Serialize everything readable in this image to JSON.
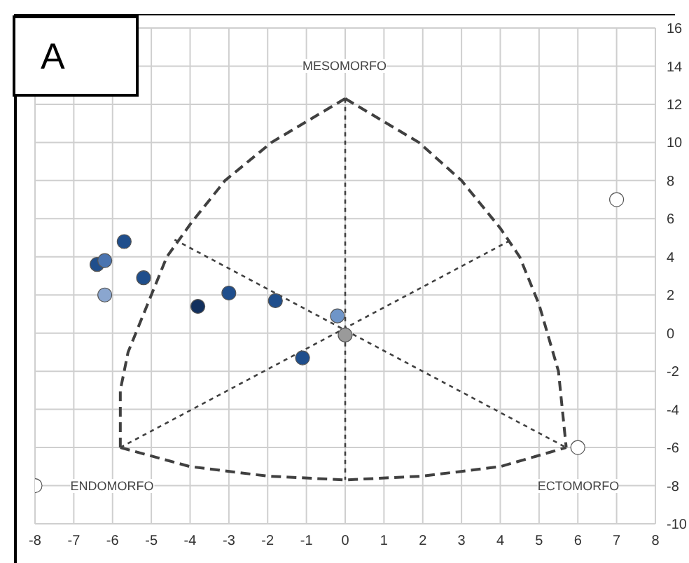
{
  "chart_data": {
    "type": "scatter",
    "xlim": [
      -8,
      8
    ],
    "xticks": [
      -8,
      -7,
      -6,
      -5,
      -4,
      -3,
      -2,
      -1,
      0,
      1,
      2,
      3,
      4,
      5,
      6,
      7,
      8
    ],
    "ylim": [
      -10,
      16
    ],
    "yticks": [
      -10,
      -8,
      -6,
      -4,
      -2,
      0,
      2,
      4,
      6,
      8,
      10,
      12,
      14,
      16
    ],
    "grid": true,
    "legend": false,
    "marker": "circle",
    "annotations": [
      "A",
      "MESOMORFO",
      "ENDOMORFO",
      "ECTOMORFO"
    ],
    "series": [
      {
        "x": [
          -5.7,
          -6.4,
          -6.2,
          -5.2,
          -6.2,
          -3.8,
          -3,
          -1.8,
          -0.2,
          0,
          -1.1
        ],
        "values": [
          4.8,
          3.6,
          3.8,
          2.9,
          2.0,
          1.4,
          2.1,
          1.7,
          0.9,
          -0.1,
          -1.3
        ],
        "colors": [
          "#1f4e8c",
          "#1f4e8c",
          "#4a74b0",
          "#1f4e8c",
          "#8aa6cf",
          "#12305e",
          "#1f4e8c",
          "#1f4e8c",
          "#6f95c8",
          "#9a9a9a",
          "#1f4e8c"
        ]
      },
      {
        "x": [
          -8,
          7,
          6
        ],
        "values": [
          -8,
          7,
          -6
        ],
        "color": "#ffffff"
      },
      {
        "type": "line",
        "line_style": "dashed",
        "marker": "none",
        "color": "#404040",
        "x": [
          -5.8,
          -5.8,
          -5.6,
          -5.4,
          -5.0,
          -4.6,
          -4.0,
          -3.1,
          -1.9,
          0
        ],
        "values": [
          -6,
          -3,
          -1,
          0,
          2,
          4,
          5.7,
          8,
          10,
          12.3
        ]
      },
      {
        "type": "line",
        "line_style": "dashed",
        "marker": "none",
        "color": "#404040",
        "x": [
          0,
          1.9,
          3,
          4,
          4.5,
          5,
          5.5,
          5.6,
          5.7
        ],
        "values": [
          12.3,
          10,
          8,
          5.5,
          4,
          1.5,
          -2,
          -4,
          -6
        ]
      },
      {
        "type": "line",
        "line_style": "dashed",
        "marker": "none",
        "color": "#404040",
        "x": [
          -5.8,
          -4,
          -2,
          0,
          2,
          4,
          5.7
        ],
        "values": [
          -6,
          -7,
          -7.5,
          -7.7,
          -7.5,
          -7,
          -6
        ]
      },
      {
        "type": "line",
        "line_style": "dotted",
        "marker": "none",
        "color": "#404040",
        "x": [
          0,
          0
        ],
        "values": [
          12.3,
          -7.7
        ]
      },
      {
        "type": "line",
        "line_style": "dotted",
        "marker": "none",
        "color": "#404040",
        "x": [
          -4.4,
          5.7
        ],
        "values": [
          4.9,
          -6
        ]
      },
      {
        "type": "line",
        "line_style": "dotted",
        "marker": "none",
        "color": "#404040",
        "x": [
          -5.8,
          4.2
        ],
        "values": [
          -6,
          4.8
        ]
      }
    ]
  }
}
